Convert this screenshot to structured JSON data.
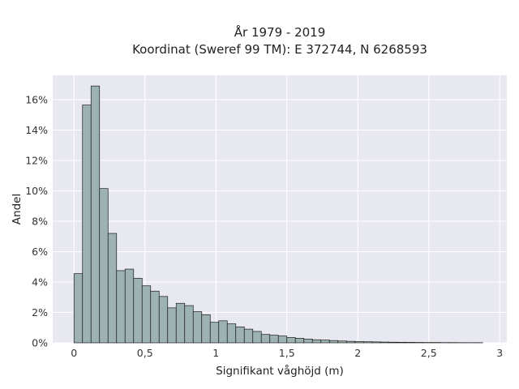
{
  "chart_data": {
    "type": "bar",
    "title_lines": [
      "År 1979 - 2019",
      "Koordinat (Sweref 99 TM): E 372744, N 6268593"
    ],
    "xlabel": "Signifikant våghöjd (m)",
    "ylabel": "Andel",
    "xlim": [
      -0.15,
      3.05
    ],
    "ylim": [
      0,
      17.6
    ],
    "x_ticks": [
      {
        "value": 0,
        "label": "0"
      },
      {
        "value": 0.5,
        "label": "0,5"
      },
      {
        "value": 1,
        "label": "1"
      },
      {
        "value": 1.5,
        "label": "1,5"
      },
      {
        "value": 2,
        "label": "2"
      },
      {
        "value": 2.5,
        "label": "2,5"
      },
      {
        "value": 3,
        "label": "3"
      }
    ],
    "y_ticks": [
      {
        "value": 0,
        "label": "0%"
      },
      {
        "value": 2,
        "label": "2%"
      },
      {
        "value": 4,
        "label": "4%"
      },
      {
        "value": 6,
        "label": "6%"
      },
      {
        "value": 8,
        "label": "8%"
      },
      {
        "value": 10,
        "label": "10%"
      },
      {
        "value": 12,
        "label": "12%"
      },
      {
        "value": 14,
        "label": "14%"
      },
      {
        "value": 16,
        "label": "16%"
      }
    ],
    "bin_width": 0.06,
    "bin_starts": [
      0.0,
      0.06,
      0.12,
      0.18,
      0.24,
      0.3,
      0.36,
      0.42,
      0.48,
      0.54,
      0.6,
      0.66,
      0.72,
      0.78,
      0.84,
      0.9,
      0.96,
      1.02,
      1.08,
      1.14,
      1.2,
      1.26,
      1.32,
      1.38,
      1.44,
      1.5,
      1.56,
      1.62,
      1.68,
      1.74,
      1.8,
      1.86,
      1.92,
      1.98,
      2.04,
      2.1,
      2.16,
      2.22,
      2.28,
      2.34,
      2.4,
      2.46,
      2.52,
      2.58,
      2.64,
      2.7,
      2.76,
      2.82
    ],
    "values": [
      4.55,
      15.65,
      16.9,
      10.15,
      7.2,
      4.75,
      4.85,
      4.25,
      3.75,
      3.4,
      3.05,
      2.3,
      2.6,
      2.45,
      2.05,
      1.85,
      1.35,
      1.45,
      1.25,
      1.05,
      0.9,
      0.75,
      0.55,
      0.5,
      0.45,
      0.35,
      0.3,
      0.25,
      0.2,
      0.18,
      0.15,
      0.12,
      0.1,
      0.08,
      0.07,
      0.06,
      0.05,
      0.04,
      0.035,
      0.03,
      0.025,
      0.02,
      0.02,
      0.015,
      0.015,
      0.01,
      0.01,
      0.01
    ],
    "grid": true,
    "colors": {
      "bar_fill": "#9db2b2",
      "bar_edge": "#1c1c1c",
      "plot_background": "#e8e8f0",
      "grid": "#ffffff"
    }
  }
}
